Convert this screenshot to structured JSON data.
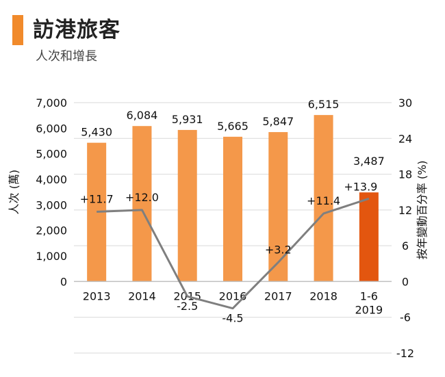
{
  "header": {
    "title": "訪港旅客",
    "subtitle": "人次和增長"
  },
  "colors": {
    "accent": "#f18a2b",
    "bar": "#f4984a",
    "bar_highlight": "#e3560f",
    "line": "#7f7f7f",
    "grid": "#d9d9d9"
  },
  "chart_data": {
    "type": "bar",
    "categories": [
      "2013",
      "2014",
      "2015",
      "2016",
      "2017",
      "2018",
      "1-6\n2019"
    ],
    "category_lines": [
      [
        "2013"
      ],
      [
        "2014"
      ],
      [
        "2015"
      ],
      [
        "2016"
      ],
      [
        "2017"
      ],
      [
        "2018"
      ],
      [
        "1-6",
        "2019"
      ]
    ],
    "bar_values": [
      5430,
      6084,
      5931,
      5665,
      5847,
      6515,
      3487
    ],
    "bar_labels": [
      "5,430",
      "6,084",
      "5,931",
      "5,665",
      "5,847",
      "6,515",
      "3,487"
    ],
    "line_values": [
      11.7,
      12.0,
      -2.5,
      -4.5,
      3.2,
      11.4,
      13.9
    ],
    "line_labels": [
      "+11.7",
      "+12.0",
      "-2.5",
      "-4.5",
      "+3.2",
      "+11.4",
      "+13.9"
    ],
    "ylabel_left": "人次 (萬)",
    "ylabel_right": "按年變動百分率 (%)",
    "ylim_left": [
      -2800,
      7000
    ],
    "ylim_right": [
      -12,
      30
    ],
    "left_ticks": [
      0,
      1000,
      2000,
      3000,
      4000,
      5000,
      6000,
      7000
    ],
    "left_tick_labels": [
      "0",
      "1,000",
      "2,000",
      "3,000",
      "4,000",
      "5,000",
      "6,000",
      "7,000"
    ],
    "right_ticks": [
      30,
      24,
      18,
      12,
      6,
      0,
      -6,
      -12
    ],
    "right_tick_labels": [
      "30",
      "24",
      "18",
      "12",
      "6",
      "0",
      "-6",
      "-12"
    ],
    "grid": true,
    "legend": "none"
  }
}
